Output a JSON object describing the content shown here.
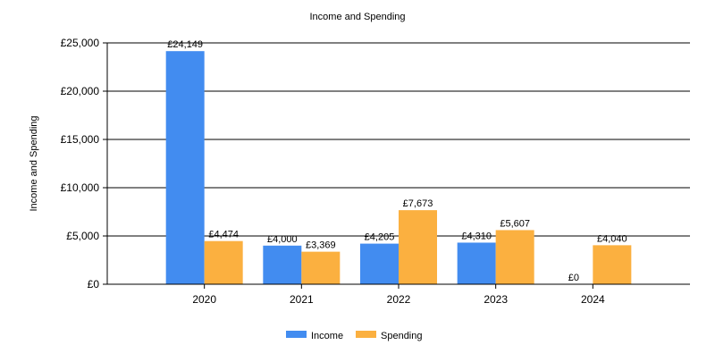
{
  "chart_data": {
    "type": "bar",
    "title": "Income and Spending",
    "xlabel": "",
    "ylabel": "Income and Spending",
    "categories": [
      "2020",
      "2021",
      "2022",
      "2023",
      "2024"
    ],
    "series": [
      {
        "name": "Income",
        "color": "#428cf0",
        "values": [
          24149,
          4000,
          4205,
          4310,
          0
        ],
        "labels": [
          "£24,149",
          "£4,000",
          "£4,205",
          "£4,310",
          "£0"
        ]
      },
      {
        "name": "Spending",
        "color": "#fbb040",
        "values": [
          4474,
          3369,
          7673,
          5607,
          4040
        ],
        "labels": [
          "£4,474",
          "£3,369",
          "£7,673",
          "£5,607",
          "£4,040"
        ]
      }
    ],
    "ylim": [
      0,
      25000
    ],
    "y_ticks": [
      {
        "value": 0,
        "label": "£0"
      },
      {
        "value": 5000,
        "label": "£5,000"
      },
      {
        "value": 10000,
        "label": "£10,000"
      },
      {
        "value": 15000,
        "label": "£15,000"
      },
      {
        "value": 20000,
        "label": "£20,000"
      },
      {
        "value": 25000,
        "label": "£25,000"
      }
    ],
    "grid": true,
    "legend_position": "bottom-center"
  }
}
